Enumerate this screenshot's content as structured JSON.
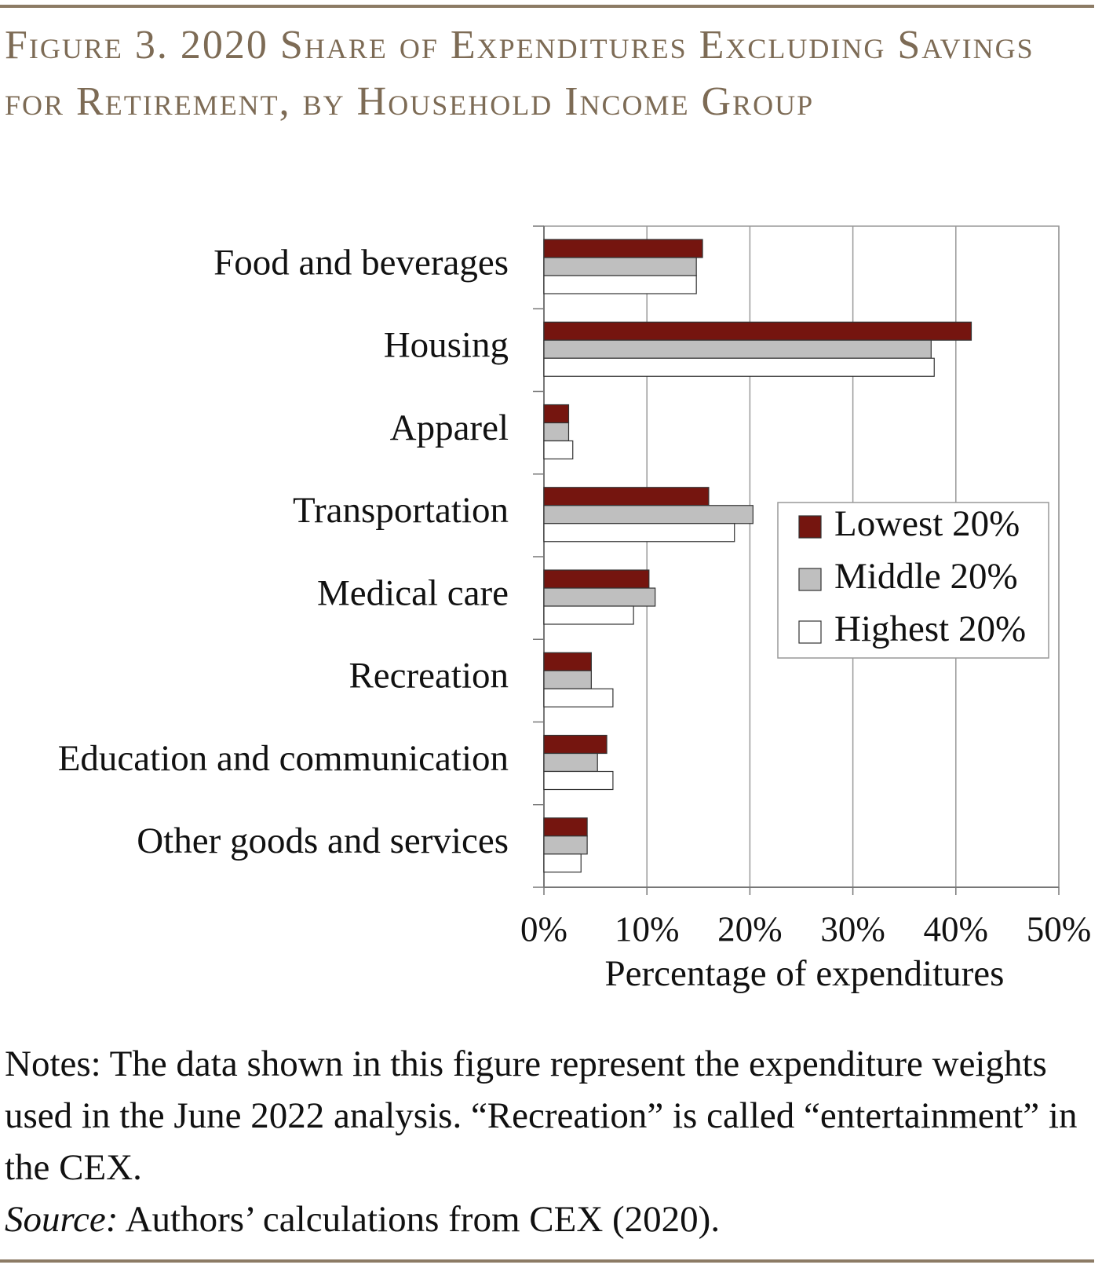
{
  "chart_data": {
    "type": "hbar",
    "title": "Figure 3. 2020 Share of Expenditures Excluding Savings for Retirement, by Household Income Group",
    "categories": [
      "Food and beverages",
      "Housing",
      "Apparel",
      "Transportation",
      "Medical care",
      "Recreation",
      "Education and communication",
      "Other goods and services"
    ],
    "series": [
      {
        "name": "Lowest 20%",
        "color": "#75150f",
        "values": [
          15.4,
          41.5,
          2.4,
          16.0,
          10.2,
          4.6,
          6.1,
          4.2
        ]
      },
      {
        "name": "Middle 20%",
        "color": "#bfbfbf",
        "values": [
          14.8,
          37.6,
          2.4,
          20.3,
          10.8,
          4.6,
          5.2,
          4.2
        ]
      },
      {
        "name": "Highest 20%",
        "color": "#ffffff",
        "values": [
          14.8,
          37.9,
          2.8,
          18.5,
          8.7,
          6.7,
          6.7,
          3.6
        ]
      }
    ],
    "xlabel": "Percentage of expenditures",
    "xlim": [
      0,
      50
    ],
    "xticks": [
      {
        "value": 0,
        "label": "0%"
      },
      {
        "value": 10,
        "label": "10%"
      },
      {
        "value": 20,
        "label": "20%"
      },
      {
        "value": 30,
        "label": "30%"
      },
      {
        "value": 40,
        "label": "40%"
      },
      {
        "value": 50,
        "label": "50%"
      }
    ],
    "grid": true,
    "legend": "center-right",
    "notes": "Notes: The data shown in this figure represent the expenditure weights used in the June 2022 analysis.  “Recreation” is called “entertainment” in the CEX.",
    "source_label": "Source:",
    "source_text": " Authors’ calculations from CEX (2020)."
  }
}
